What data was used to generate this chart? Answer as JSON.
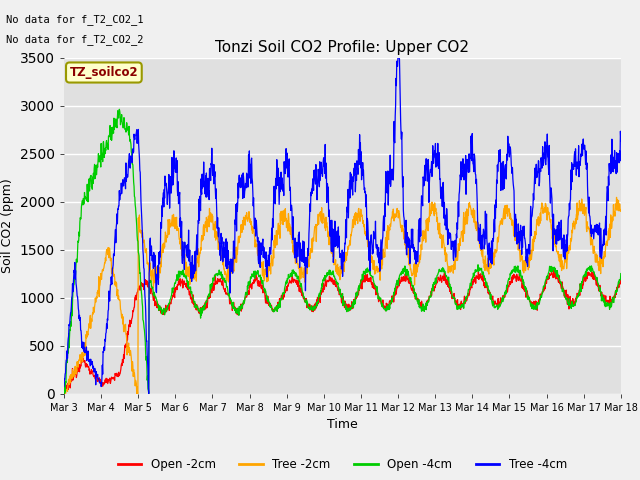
{
  "title": "Tonzi Soil CO2 Profile: Upper CO2",
  "xlabel": "Time",
  "ylabel": "Soil CO2 (ppm)",
  "ylim": [
    0,
    3500
  ],
  "yticks": [
    0,
    500,
    1000,
    1500,
    2000,
    2500,
    3000,
    3500
  ],
  "legend_labels": [
    "Open -2cm",
    "Tree -2cm",
    "Open -4cm",
    "Tree -4cm"
  ],
  "legend_colors": [
    "#ff0000",
    "#ffa500",
    "#00cc00",
    "#0000ff"
  ],
  "note_lines": [
    "No data for f_T2_CO2_1",
    "No data for f_T2_CO2_2"
  ],
  "inset_label": "TZ_soilco2",
  "plot_bg_color": "#e0e0e0",
  "fig_bg_color": "#f0f0f0",
  "n_days": 15,
  "points_per_day": 96,
  "start_day": 3,
  "end_day": 18
}
